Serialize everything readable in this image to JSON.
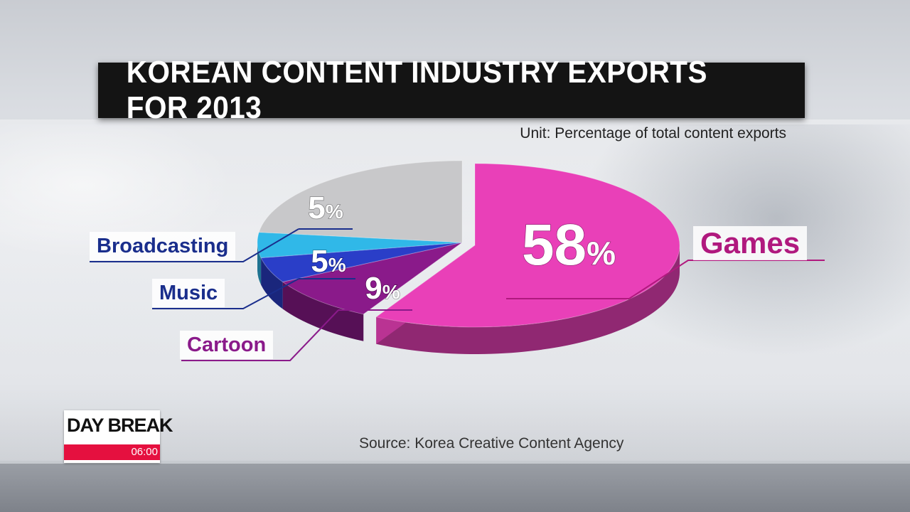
{
  "title": "KOREAN CONTENT INDUSTRY EXPORTS FOR 2013",
  "unit": "Unit: Percentage of total content exports",
  "source": "Source: Korea Creative Content Agency",
  "logo": {
    "name": "DAY BREAK",
    "time": "06:00"
  },
  "colors": {
    "games": "#e940b8",
    "cartoon": "#8a1a8a",
    "music": "#2a3ec8",
    "broadcasting": "#30b8e8",
    "other": "#c8c8ca"
  },
  "chart_data": {
    "type": "pie",
    "title": "KOREAN CONTENT INDUSTRY EXPORTS FOR 2013",
    "unit": "Unit: Percentage of total content exports",
    "slices": [
      {
        "label": "Games",
        "value": 58,
        "display": "58",
        "color": "#e940b8"
      },
      {
        "label": "Cartoon",
        "value": 9,
        "display": "9",
        "color": "#8a1a8a"
      },
      {
        "label": "Music",
        "value": 5,
        "display": "5",
        "color": "#2a3ec8"
      },
      {
        "label": "Broadcasting",
        "value": 5,
        "display": "5",
        "color": "#30b8e8"
      },
      {
        "label": "",
        "value": 23,
        "display": "",
        "color": "#c8c8ca"
      }
    ],
    "percent_sign": "%",
    "source": "Source: Korea Creative Content Agency"
  }
}
